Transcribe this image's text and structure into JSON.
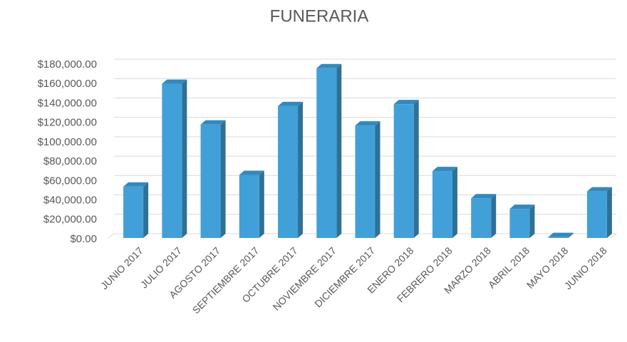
{
  "chart_data": {
    "type": "bar3d",
    "title": "FUNERARIA",
    "categories": [
      "JUNIO 2017",
      "JULIO 2017",
      "AGOSTO 2017",
      "SEPTIEMBRE 2017",
      "OCTUBRE 2017",
      "NOVIEMBRE 2017",
      "DICIEMBRE 2017",
      "ENERO 2018",
      "FEBRERO 2018",
      "MARZO 2018",
      "ABRIL 2018",
      "MAYO 2018",
      "JUNIO 2018"
    ],
    "values": [
      53000,
      159000,
      117000,
      65000,
      136000,
      175000,
      116000,
      138000,
      69000,
      41000,
      30000,
      1000,
      48000
    ],
    "color": "#41a0d8",
    "ylim": [
      0,
      180000
    ],
    "yticks": [
      {
        "value": 0,
        "label": "$0.00"
      },
      {
        "value": 20000,
        "label": "$20,000.00"
      },
      {
        "value": 40000,
        "label": "$40,000.00"
      },
      {
        "value": 60000,
        "label": "$60,000.00"
      },
      {
        "value": 80000,
        "label": "$80,000.00"
      },
      {
        "value": 100000,
        "label": "$100,000.00"
      },
      {
        "value": 120000,
        "label": "$120,000.00"
      },
      {
        "value": 140000,
        "label": "$140,000.00"
      },
      {
        "value": 160000,
        "label": "$160,000.00"
      },
      {
        "value": 180000,
        "label": "$180,000.00"
      }
    ],
    "grid": true
  }
}
